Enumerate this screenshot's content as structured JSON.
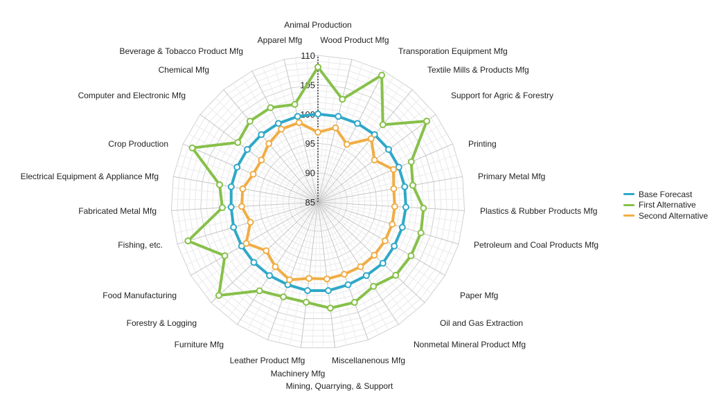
{
  "chart_data": {
    "type": "radar",
    "categories": [
      "Animal Production",
      "Wood Product Mfg",
      "Transporation Equipment Mfg",
      "Textile Mills & Products Mfg",
      "Support for Agric & Forestry",
      "Printing",
      "Primary Metal Mfg",
      "Plastics & Rubber Products Mfg",
      "Petroleum and Coal Products Mfg",
      "Paper Mfg",
      "Oil and Gas Extraction",
      "Nonmetal Mineral Product Mfg",
      "Miscellanenous Mfg",
      "Mining, Quarrying, & Support",
      "Machinery Mfg",
      "Leather Product Mfg",
      "Furniture Mfg",
      "Forestry & Logging",
      "Food Manufacturing",
      "Fishing, etc.",
      "Fabricated Metal Mfg",
      "Electrical Equipment & Appliance Mfg",
      "Crop Production",
      "Computer and Electronic Mfg",
      "Chemical Mfg",
      "Beverage & Tobacco Product Mfg",
      "Apparel Mfg"
    ],
    "series": [
      {
        "name": "Base Forecast",
        "color": "#2fa8c7",
        "values": [
          100,
          100,
          100,
          100,
          100,
          100,
          100,
          100,
          100,
          100,
          100.2,
          100,
          100,
          100.2,
          100.2,
          100,
          100,
          100,
          100,
          100,
          99.8,
          100,
          100,
          100,
          100,
          100,
          100
        ]
      },
      {
        "name": "First Alternative",
        "color": "#87c04a",
        "values": [
          108,
          103,
          109.2,
          102.2,
          108.1,
          102.3,
          101.4,
          103,
          103.3,
          103.3,
          103.2,
          102.2,
          103.2,
          103.2,
          102.2,
          102.2,
          103.1,
          108.2,
          103.3,
          108.1,
          101.3,
          102,
          108.3,
          102,
          103,
          103,
          102.1
        ]
      },
      {
        "name": "Second Alternative",
        "color": "#f0ad45",
        "values": [
          96.9,
          98,
          96,
          99.1,
          97,
          99,
          98.1,
          98.1,
          98.2,
          98.2,
          98.2,
          98.2,
          98.1,
          98.2,
          98.1,
          99.1,
          98.2,
          97.1,
          99.1,
          97,
          98,
          98,
          97,
          97,
          98,
          98.9,
          98.9
        ]
      }
    ],
    "radial_axis": {
      "min": 85,
      "max": 110,
      "ticks": [
        85,
        90,
        95,
        100,
        105,
        110
      ]
    },
    "grid": true,
    "legend_position": "right"
  }
}
